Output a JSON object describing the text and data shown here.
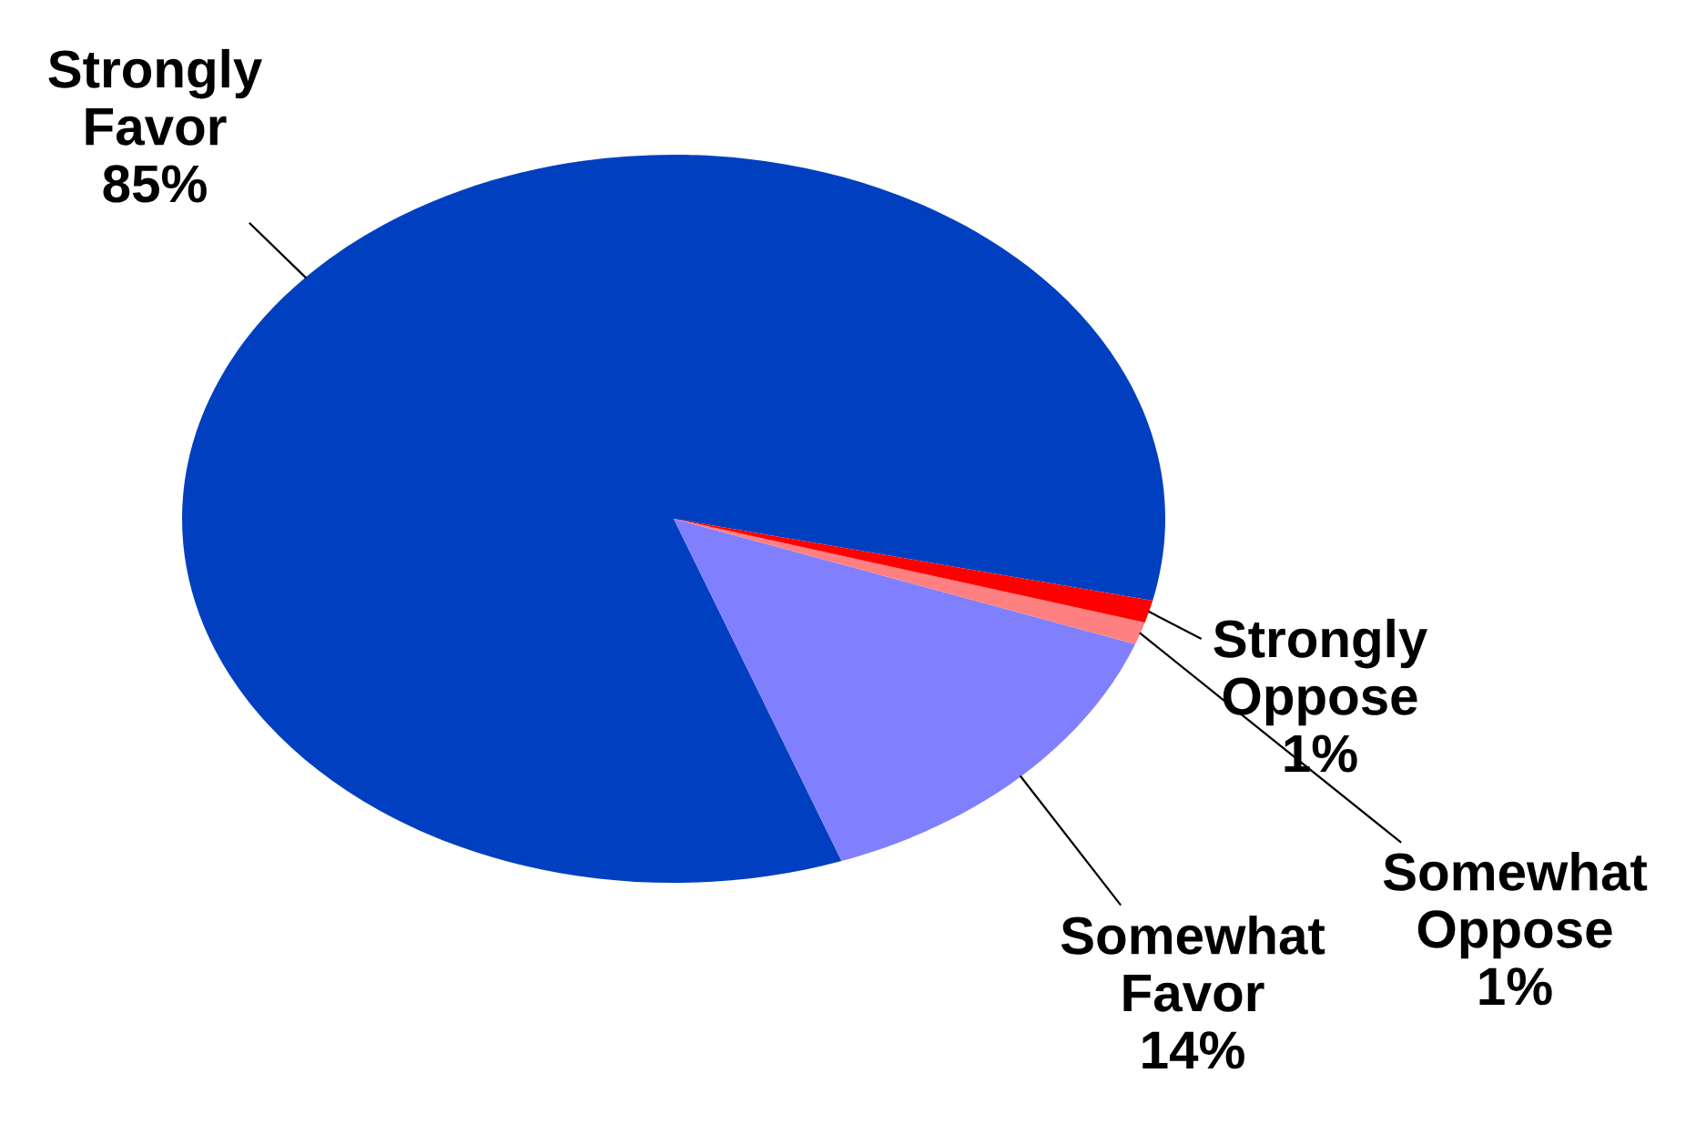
{
  "chart_data": {
    "type": "pie",
    "categories": [
      "Strongly Favor",
      "Somewhat Favor",
      "Somewhat Oppose",
      "Strongly Oppose"
    ],
    "values": [
      85,
      14,
      1,
      1
    ],
    "colors": [
      "#0040c0",
      "#8080ff",
      "#ff8080",
      "#ff0000"
    ],
    "value_labels": [
      "85%",
      "14%",
      "1%",
      "1%"
    ]
  }
}
